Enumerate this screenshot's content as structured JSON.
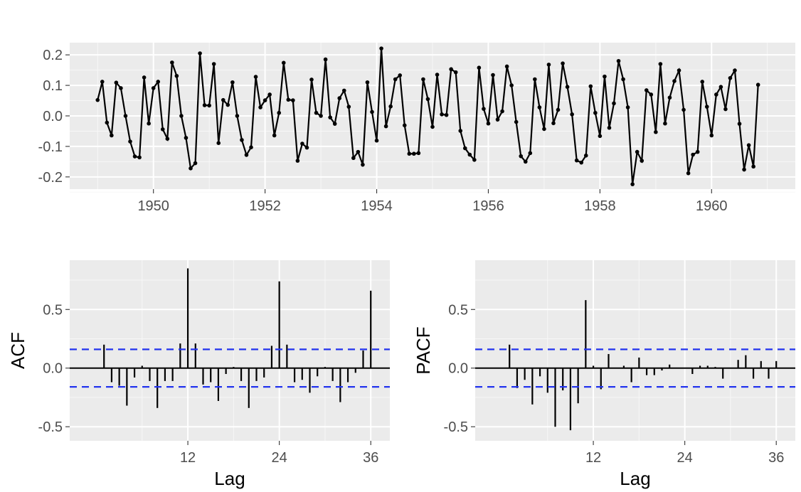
{
  "chart_data": [
    {
      "type": "line",
      "series": [
        {
          "x_start": 1949.0,
          "x_step": 0.083333,
          "values": [
            0.052,
            0.112,
            -0.022,
            -0.064,
            0.109,
            0.091,
            0.0,
            -0.084,
            -0.133,
            -0.136,
            0.126,
            -0.025,
            0.091,
            0.112,
            -0.044,
            -0.075,
            0.175,
            0.131,
            0.0,
            -0.072,
            -0.172,
            -0.155,
            0.205,
            0.035,
            0.034,
            0.17,
            -0.089,
            0.052,
            0.036,
            0.11,
            0.0,
            -0.079,
            -0.128,
            -0.103,
            0.128,
            0.028,
            0.051,
            0.07,
            -0.064,
            0.01,
            0.174,
            0.053,
            0.051,
            -0.147,
            -0.091,
            -0.104,
            0.119,
            0.01,
            0.0,
            0.185,
            -0.005,
            -0.026,
            0.058,
            0.083,
            0.03,
            -0.138,
            -0.118,
            -0.16,
            0.11,
            0.013,
            -0.081,
            0.221,
            -0.034,
            0.031,
            0.12,
            0.133,
            -0.031,
            -0.124,
            -0.124,
            -0.122,
            0.12,
            0.055,
            -0.036,
            0.135,
            0.005,
            0.003,
            0.153,
            0.143,
            -0.049,
            -0.106,
            -0.127,
            -0.144,
            0.158,
            0.023,
            -0.025,
            0.134,
            -0.012,
            0.015,
            0.162,
            0.1,
            -0.02,
            -0.132,
            -0.15,
            -0.122,
            0.12,
            0.028,
            -0.043,
            0.168,
            -0.024,
            0.02,
            0.172,
            0.095,
            0.005,
            -0.146,
            -0.153,
            -0.13,
            0.097,
            0.01,
            -0.066,
            0.129,
            -0.039,
            0.041,
            0.18,
            0.12,
            0.028,
            -0.224,
            -0.118,
            -0.147,
            0.084,
            0.07,
            -0.053,
            0.17,
            -0.025,
            0.06,
            0.114,
            0.149,
            0.02,
            -0.188,
            -0.127,
            -0.118,
            0.112,
            0.03,
            -0.064,
            0.07,
            0.095,
            0.022,
            0.124,
            0.149,
            -0.026,
            -0.176,
            -0.096,
            -0.166,
            0.102
          ]
        }
      ],
      "x_ticks": [
        "1950",
        "1952",
        "1954",
        "1956",
        "1958",
        "1960"
      ],
      "y_ticks": [
        "-0.2",
        "-0.1",
        "0.0",
        "0.1",
        "0.2"
      ],
      "xlim": [
        1948.5,
        1961.5
      ],
      "ylim": [
        -0.24,
        0.24
      ],
      "xlabel": "",
      "ylabel": "",
      "grid": true
    },
    {
      "type": "bar",
      "lags": [
        1,
        2,
        3,
        4,
        5,
        6,
        7,
        8,
        9,
        10,
        11,
        12,
        13,
        14,
        15,
        16,
        17,
        18,
        19,
        20,
        21,
        22,
        23,
        24,
        25,
        26,
        27,
        28,
        29,
        30,
        31,
        32,
        33,
        34,
        35,
        36
      ],
      "values": [
        0.2,
        -0.12,
        -0.15,
        -0.32,
        -0.08,
        0.02,
        -0.11,
        -0.34,
        -0.11,
        -0.11,
        0.21,
        0.85,
        0.21,
        -0.14,
        -0.12,
        -0.28,
        -0.05,
        0.01,
        -0.11,
        -0.34,
        -0.11,
        -0.08,
        0.19,
        0.74,
        0.2,
        -0.12,
        -0.1,
        -0.21,
        -0.07,
        0.01,
        -0.11,
        -0.29,
        -0.12,
        -0.04,
        0.15,
        0.66
      ],
      "confidence_bound": 0.16,
      "x_ticks": [
        "12",
        "24",
        "36"
      ],
      "y_ticks": [
        "-0.5",
        "0.0",
        "0.5"
      ],
      "xlim": [
        -3.5,
        38.5
      ],
      "ylim": [
        -0.62,
        0.92
      ],
      "xlabel": "Lag",
      "ylabel": "ACF"
    },
    {
      "type": "bar",
      "lags": [
        1,
        2,
        3,
        4,
        5,
        6,
        7,
        8,
        9,
        10,
        11,
        12,
        13,
        14,
        15,
        16,
        17,
        18,
        19,
        20,
        21,
        22,
        23,
        24,
        25,
        26,
        27,
        28,
        29,
        30,
        31,
        32,
        33,
        34,
        35,
        36
      ],
      "values": [
        0.2,
        -0.17,
        -0.1,
        -0.31,
        -0.07,
        -0.21,
        -0.5,
        -0.19,
        -0.53,
        -0.3,
        0.58,
        0.02,
        -0.18,
        0.12,
        0.0,
        0.02,
        -0.12,
        0.09,
        -0.06,
        -0.06,
        -0.02,
        0.03,
        0.0,
        0.0,
        -0.05,
        0.02,
        0.02,
        0.01,
        -0.09,
        0.0,
        0.07,
        0.11,
        -0.09,
        0.06,
        -0.09,
        0.06
      ],
      "confidence_bound": 0.16,
      "x_ticks": [
        "12",
        "24",
        "36"
      ],
      "y_ticks": [
        "-0.5",
        "0.0",
        "0.5"
      ],
      "xlim": [
        -3.5,
        38.5
      ],
      "ylim": [
        -0.62,
        0.92
      ],
      "xlabel": "Lag",
      "ylabel": "PACF"
    }
  ]
}
